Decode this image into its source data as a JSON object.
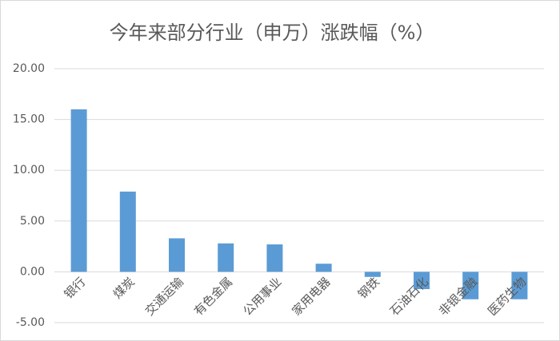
{
  "chart_data": {
    "type": "bar",
    "title": "今年来部分行业（申万）涨跌幅（%）",
    "categories": [
      "银行",
      "煤炭",
      "交通运输",
      "有色金属",
      "公用事业",
      "家用电器",
      "钢铁",
      "石油石化",
      "非银金融",
      "医药生物"
    ],
    "values": [
      16.0,
      7.9,
      3.3,
      2.8,
      2.7,
      0.8,
      -0.5,
      -1.7,
      -2.7,
      -2.7
    ],
    "color": "#5b9bd5",
    "ylim": [
      -5,
      20
    ],
    "yticks": [
      {
        "value": -5,
        "label": "-5.00"
      },
      {
        "value": 0,
        "label": "0.00"
      },
      {
        "value": 5,
        "label": "5.00"
      },
      {
        "value": 10,
        "label": "10.00"
      },
      {
        "value": 15,
        "label": "15.00"
      },
      {
        "value": 20,
        "label": "20.00"
      }
    ],
    "grid": true
  }
}
